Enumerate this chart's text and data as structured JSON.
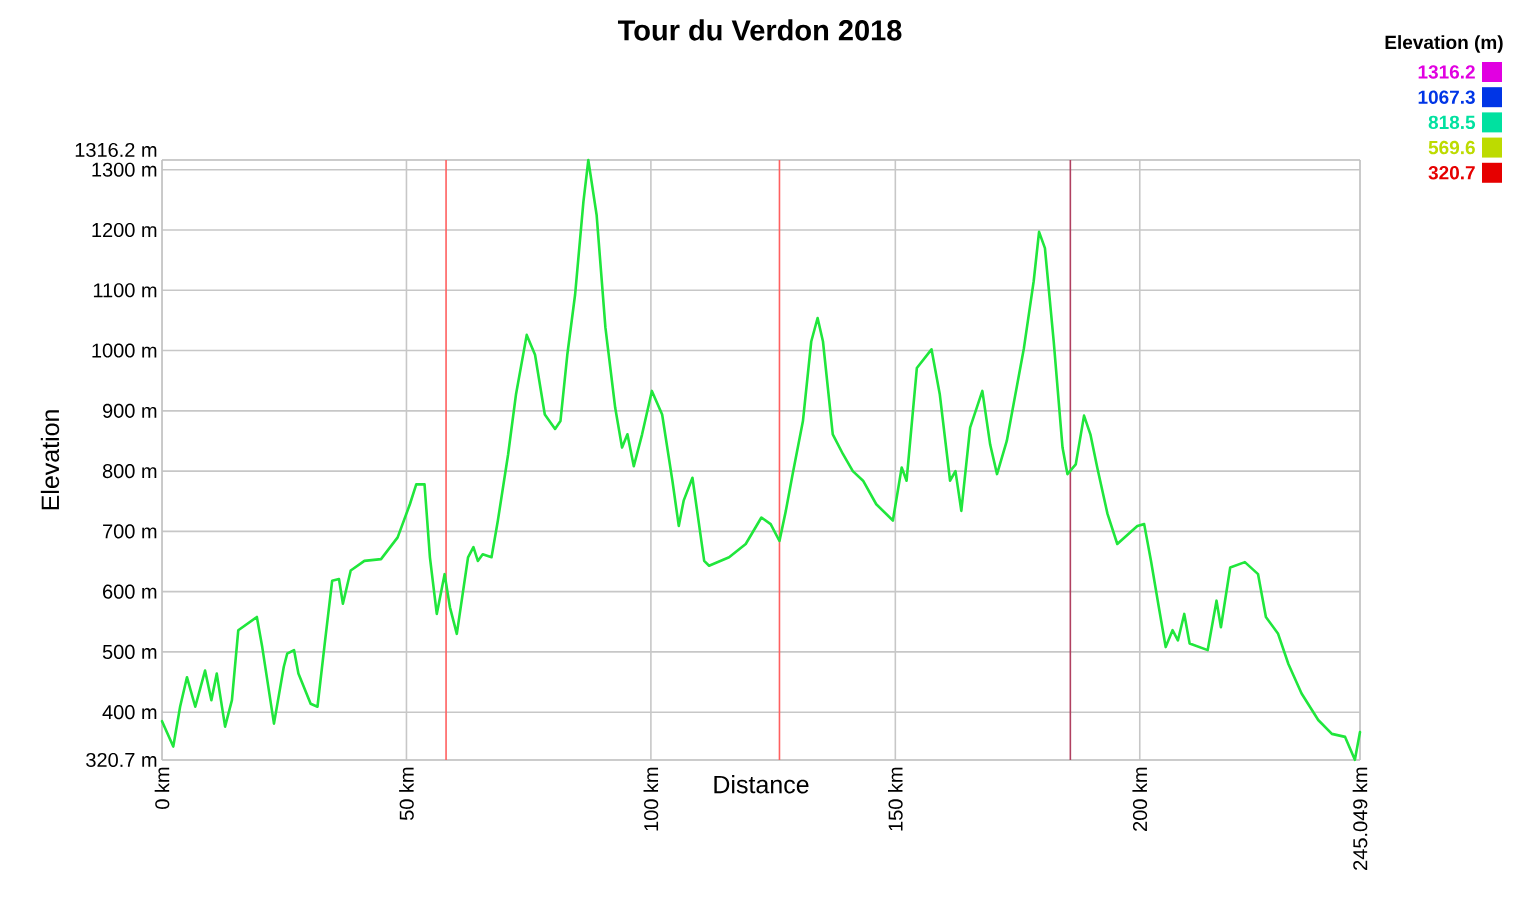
{
  "chart_data": {
    "type": "line",
    "title": "Tour du Verdon 2018",
    "xlabel": "Distance",
    "ylabel": "Elevation",
    "clabel": "Elevation (m)",
    "clim": [
      320.7,
      1316.2
    ],
    "cticks": [
      1316.2,
      1067.3,
      818.5,
      569.6,
      320.7
    ],
    "xlim": [
      0,
      245.049
    ],
    "ylim": [
      320.7,
      1316.2
    ],
    "xticks": [
      {
        "value": 0,
        "label": "0 km"
      },
      {
        "value": 50,
        "label": "50 km"
      },
      {
        "value": 100,
        "label": "100 km"
      },
      {
        "value": 150,
        "label": "150 km"
      },
      {
        "value": 200,
        "label": "200 km"
      },
      {
        "value": 245.049,
        "label": "245.049 km"
      }
    ],
    "yticks": [
      {
        "value": 320.7,
        "label": "320.7 m"
      },
      {
        "value": 400,
        "label": "400 m"
      },
      {
        "value": 500,
        "label": "500 m"
      },
      {
        "value": 600,
        "label": "600 m"
      },
      {
        "value": 700,
        "label": "700 m"
      },
      {
        "value": 800,
        "label": "800 m"
      },
      {
        "value": 900,
        "label": "900 m"
      },
      {
        "value": 1000,
        "label": "1000 m"
      },
      {
        "value": 1100,
        "label": "1100 m"
      },
      {
        "value": 1200,
        "label": "1200 m"
      },
      {
        "value": 1300,
        "label": "1300 m"
      },
      {
        "value": 1316.2,
        "label": "1316.2 m"
      }
    ],
    "grid": true,
    "ref_lines": [
      {
        "axis": "x",
        "value": 58.1,
        "color": "#ff6060"
      },
      {
        "axis": "x",
        "value": 126.3,
        "color": "#ff6060"
      },
      {
        "axis": "x",
        "value": 185.8,
        "color": "#b04060"
      }
    ],
    "x": [
      0,
      2.3,
      3.7,
      5.1,
      6.8,
      8.8,
      10.1,
      11.2,
      12.9,
      14.3,
      15.6,
      19.4,
      20.5,
      22.9,
      24.9,
      25.6,
      27.0,
      27.9,
      30.4,
      31.8,
      33.2,
      34.8,
      36.2,
      37.0,
      38.6,
      41.4,
      44.8,
      48.2,
      50.7,
      52.0,
      53.7,
      54.8,
      56.2,
      57.8,
      58.9,
      60.3,
      62.6,
      63.7,
      64.6,
      65.6,
      67.4,
      68.7,
      70.8,
      72.4,
      74.6,
      76.3,
      78.3,
      80.4,
      81.5,
      82.9,
      84.5,
      86.2,
      87.2,
      88.9,
      90.7,
      92.7,
      94.1,
      95.2,
      96.5,
      98.2,
      100.2,
      102.3,
      104.4,
      105.7,
      106.7,
      108.5,
      110.9,
      111.9,
      116.0,
      119.4,
      122.6,
      124.5,
      126.3,
      127.6,
      129.0,
      131.1,
      132.8,
      134.1,
      135.2,
      137.2,
      139.3,
      141.3,
      143.4,
      146.1,
      149.5,
      151.3,
      152.3,
      154.4,
      157.4,
      159.1,
      161.2,
      162.3,
      163.5,
      165.3,
      167.8,
      169.4,
      170.8,
      172.8,
      176.3,
      178.3,
      179.4,
      180.6,
      182.4,
      184.2,
      185.2,
      186.9,
      188.6,
      189.9,
      191.3,
      193.4,
      195.4,
      199.5,
      200.9,
      202.3,
      203.9,
      205.3,
      206.7,
      207.8,
      209.1,
      210.2,
      213.9,
      215.7,
      216.6,
      218.5,
      221.5,
      224.2,
      225.8,
      228.3,
      230.4,
      233.1,
      236.5,
      239.3,
      242.0,
      244.0,
      245.049
    ],
    "values": [
      385,
      343,
      409,
      458,
      409,
      469,
      420,
      464,
      376,
      420,
      536,
      558,
      508,
      381,
      475,
      497,
      503,
      464,
      414,
      409,
      508,
      618,
      621,
      580,
      635,
      651,
      654,
      690,
      745,
      778,
      778,
      657,
      563,
      629,
      574,
      530,
      657,
      674,
      651,
      662,
      657,
      718,
      828,
      927,
      1026,
      993,
      894,
      870,
      883,
      993,
      1093,
      1247,
      1316,
      1225,
      1038,
      905,
      839,
      861,
      808,
      861,
      933,
      894,
      784,
      709,
      751,
      789,
      651,
      643,
      657,
      679,
      723,
      712,
      684,
      734,
      795,
      883,
      1015,
      1054,
      1015,
      861,
      828,
      800,
      784,
      745,
      718,
      806,
      784,
      971,
      1002,
      927,
      784,
      800,
      734,
      872,
      933,
      844,
      795,
      850,
      1004,
      1115,
      1197,
      1170,
      1015,
      839,
      795,
      811,
      892,
      861,
      806,
      729,
      679,
      709,
      712,
      651,
      574,
      508,
      536,
      519,
      563,
      514,
      503,
      585,
      541,
      640,
      649,
      629,
      558,
      530,
      480,
      431,
      387,
      364,
      359,
      321,
      367
    ]
  }
}
